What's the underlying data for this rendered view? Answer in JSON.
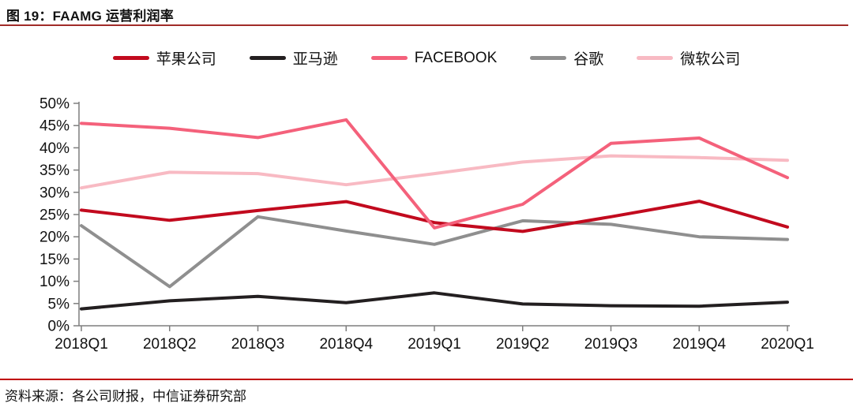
{
  "figure": {
    "title": "图 19：FAAMG 运营利润率",
    "source": "资料来源：各公司财报，中信证券研究部"
  },
  "colors": {
    "title_rule": "#a12b28",
    "footer_rule": "#c00000",
    "axis": "#7f7f7f",
    "label_text": "#111111"
  },
  "chart_data": {
    "type": "line",
    "title": "FAAMG 运营利润率",
    "categories": [
      "2018Q1",
      "2018Q2",
      "2018Q3",
      "2018Q4",
      "2019Q1",
      "2019Q2",
      "2019Q3",
      "2019Q4",
      "2020Q1"
    ],
    "series": [
      {
        "name": "苹果公司",
        "color": "#c20a1e",
        "values": [
          26.0,
          23.7,
          25.9,
          27.9,
          23.2,
          21.2,
          24.5,
          28.0,
          22.2
        ]
      },
      {
        "name": "亚马逊",
        "color": "#231f20",
        "values": [
          3.8,
          5.6,
          6.6,
          5.2,
          7.4,
          4.9,
          4.5,
          4.4,
          5.3
        ]
      },
      {
        "name": "FACEBOOK",
        "color": "#f4617b",
        "values": [
          45.5,
          44.4,
          42.3,
          46.3,
          22.0,
          27.3,
          41.0,
          42.2,
          33.3
        ]
      },
      {
        "name": "谷歌",
        "color": "#8f8f8f",
        "values": [
          22.5,
          8.8,
          24.5,
          21.3,
          18.3,
          23.6,
          22.8,
          20.0,
          19.4
        ]
      },
      {
        "name": "微软公司",
        "color": "#f8bac3",
        "values": [
          31.0,
          34.5,
          34.2,
          31.7,
          34.2,
          36.8,
          38.2,
          37.8,
          37.2
        ]
      }
    ],
    "ylim": [
      0,
      50
    ],
    "ytick_step": 5,
    "ytick_suffix": "%",
    "grid": false,
    "legend_position": "top",
    "draw_order": [
      "谷歌",
      "微软公司",
      "亚马逊",
      "苹果公司",
      "FACEBOOK"
    ]
  }
}
